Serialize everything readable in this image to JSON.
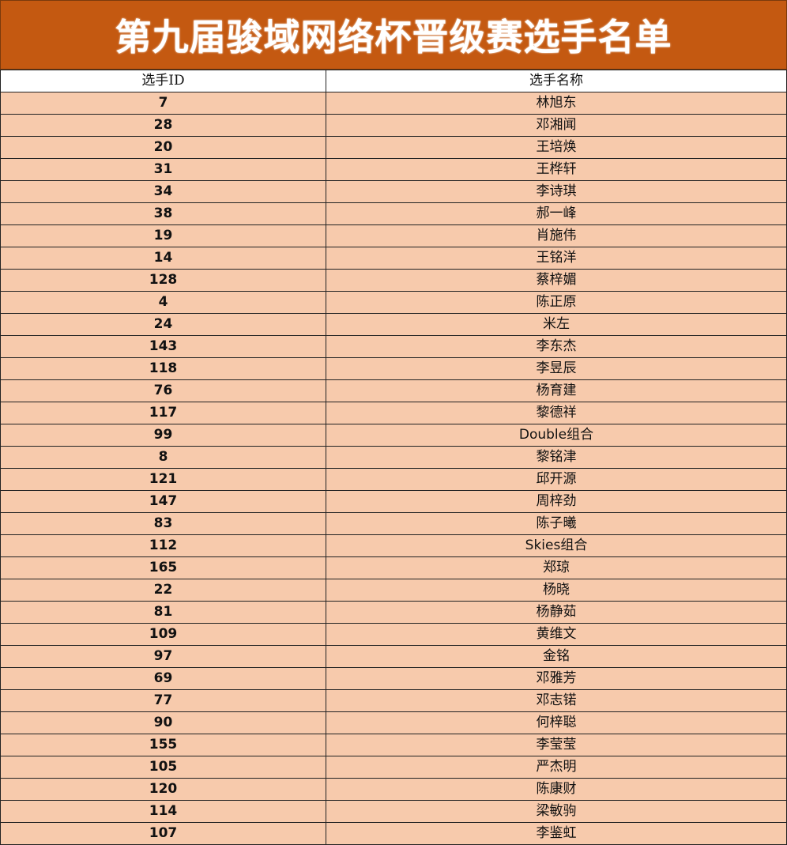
{
  "title": "第九届骏域网络杯晋级赛选手名单",
  "colors": {
    "title_bg": "#C45911",
    "row_bg": "#F7CAAC"
  },
  "table": {
    "headers": [
      "选手ID",
      "选手名称"
    ],
    "rows": [
      [
        "7",
        "林旭东"
      ],
      [
        "28",
        "邓湘闻"
      ],
      [
        "20",
        "王培焕"
      ],
      [
        "31",
        "王桦轩"
      ],
      [
        "34",
        "李诗琪"
      ],
      [
        "38",
        "郝一峰"
      ],
      [
        "19",
        "肖施伟"
      ],
      [
        "14",
        "王铭洋"
      ],
      [
        "128",
        "蔡梓媚"
      ],
      [
        "4",
        "陈正原"
      ],
      [
        "24",
        "米左"
      ],
      [
        "143",
        "李东杰"
      ],
      [
        "118",
        "李昱辰"
      ],
      [
        "76",
        "杨育建"
      ],
      [
        "117",
        "黎德祥"
      ],
      [
        "99",
        "Double组合"
      ],
      [
        "8",
        "黎铭津"
      ],
      [
        "121",
        "邱开源"
      ],
      [
        "147",
        "周梓劲"
      ],
      [
        "83",
        "陈子曦"
      ],
      [
        "112",
        "Skies组合"
      ],
      [
        "165",
        "郑琼"
      ],
      [
        "22",
        "杨晓"
      ],
      [
        "81",
        "杨静茹"
      ],
      [
        "109",
        "黄维文"
      ],
      [
        "97",
        "金铭"
      ],
      [
        "69",
        "邓雅芳"
      ],
      [
        "77",
        "邓志锘"
      ],
      [
        "90",
        "何梓聪"
      ],
      [
        "155",
        "李莹莹"
      ],
      [
        "105",
        "严杰明"
      ],
      [
        "120",
        "陈康财"
      ],
      [
        "114",
        "梁敏驹"
      ],
      [
        "107",
        "李鉴虹"
      ]
    ]
  }
}
